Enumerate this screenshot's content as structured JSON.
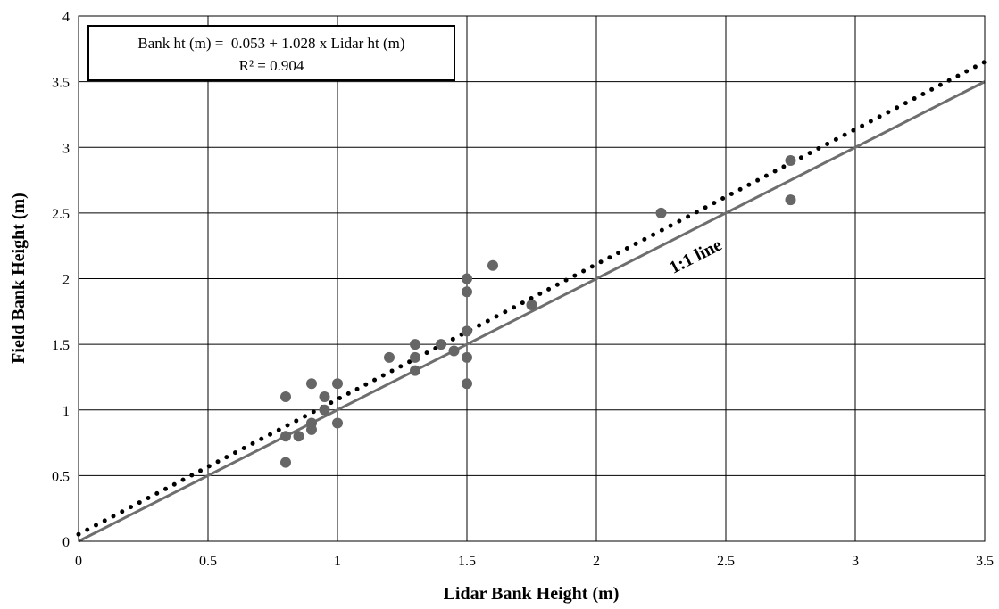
{
  "chart_data": {
    "type": "scatter",
    "title": "",
    "xlabel": "Lidar Bank Height (m)",
    "ylabel": "Field Bank Height (m)",
    "xlim": [
      0,
      3.5
    ],
    "ylim": [
      0,
      4
    ],
    "x_ticks": [
      "0",
      "0.5",
      "1",
      "1.5",
      "2",
      "2.5",
      "3",
      "3.5"
    ],
    "y_ticks": [
      "0",
      "0.5",
      "1",
      "1.5",
      "2",
      "2.5",
      "3",
      "3.5",
      "4"
    ],
    "grid": true,
    "legend": "none",
    "series": [
      {
        "type": "scatter",
        "color": "#666666",
        "points": [
          [
            0.8,
            0.6
          ],
          [
            0.8,
            0.8
          ],
          [
            0.8,
            1.1
          ],
          [
            0.85,
            0.8
          ],
          [
            0.9,
            0.85
          ],
          [
            0.9,
            0.9
          ],
          [
            0.9,
            1.2
          ],
          [
            0.95,
            1.0
          ],
          [
            0.95,
            1.1
          ],
          [
            1.0,
            0.9
          ],
          [
            1.0,
            1.2
          ],
          [
            1.2,
            1.4
          ],
          [
            1.3,
            1.3
          ],
          [
            1.3,
            1.4
          ],
          [
            1.3,
            1.5
          ],
          [
            1.4,
            1.5
          ],
          [
            1.45,
            1.45
          ],
          [
            1.5,
            1.2
          ],
          [
            1.5,
            1.4
          ],
          [
            1.5,
            1.6
          ],
          [
            1.5,
            1.9
          ],
          [
            1.5,
            2.0
          ],
          [
            1.6,
            2.1
          ],
          [
            1.75,
            1.8
          ],
          [
            2.25,
            2.5
          ],
          [
            2.75,
            2.6
          ],
          [
            2.75,
            2.9
          ]
        ]
      }
    ],
    "regression_line": {
      "intercept": 0.053,
      "slope": 1.028,
      "style": "dotted",
      "color": "#000000"
    },
    "identity_line": {
      "style": "solid",
      "color": "#6e6e6e",
      "label": "1:1 line"
    },
    "annotations": {
      "equation": "Bank ht (m) =  0.053 + 1.028 x Lidar ht (m)",
      "r_squared": "R² = 0.904",
      "identity_label": "1:1 line"
    }
  }
}
